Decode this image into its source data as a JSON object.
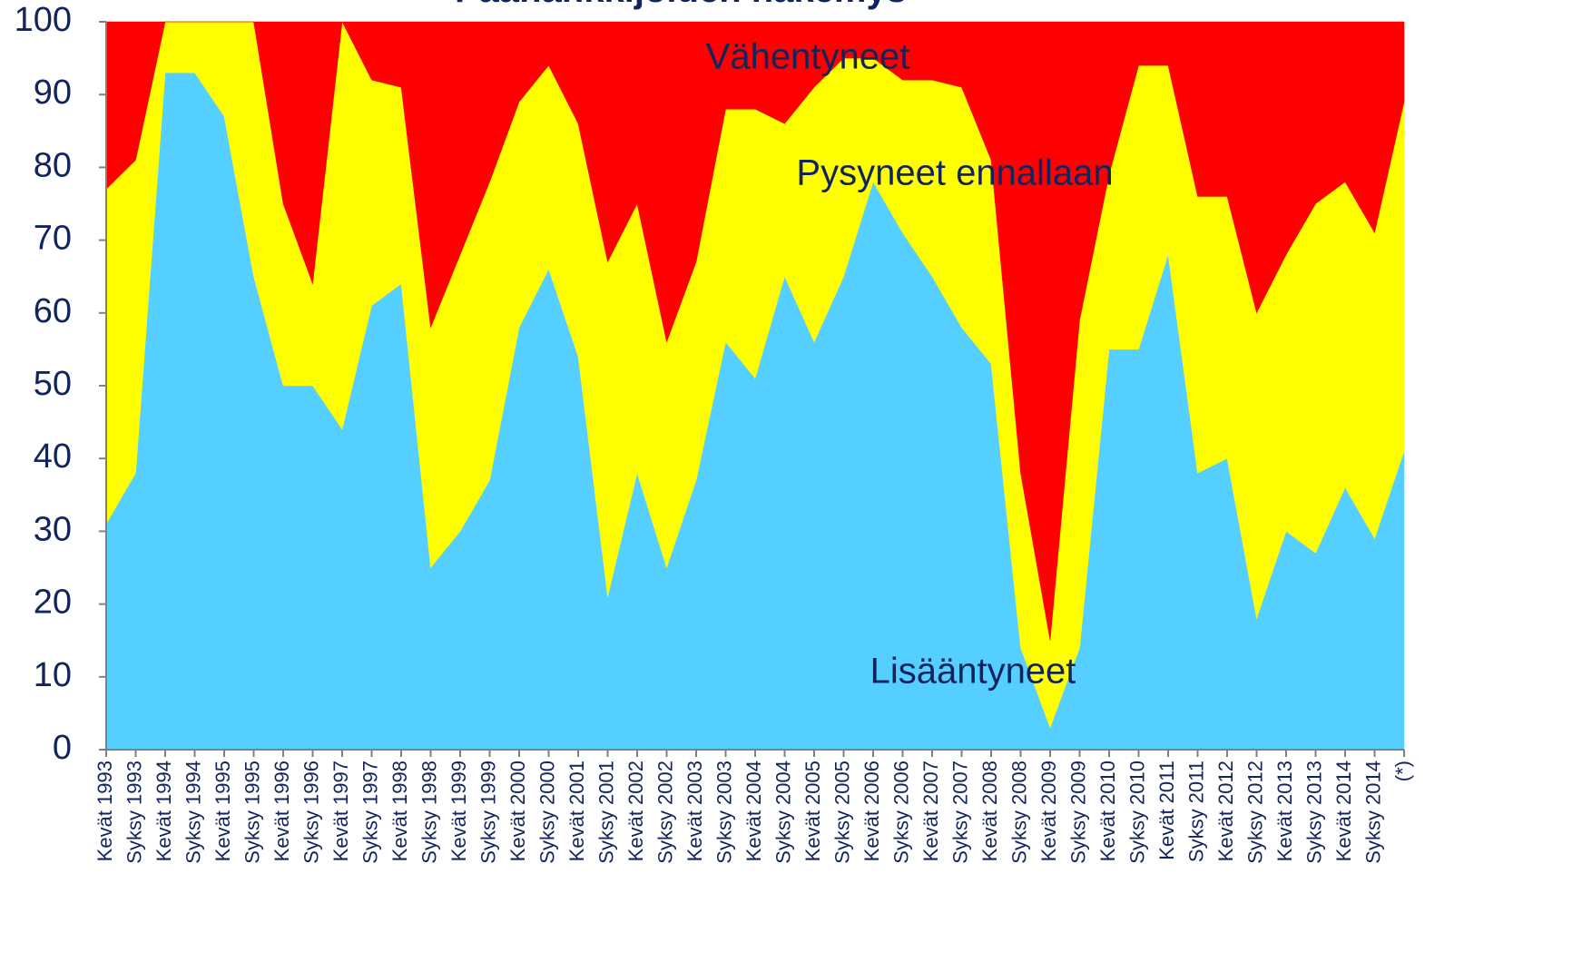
{
  "chart_data": {
    "type": "stacked_area",
    "title": "Päähankkijoiden näkemys",
    "categories": [
      "Kevät 1993",
      "Syksy 1993",
      "Kevät 1994",
      "Syksy 1994",
      "Kevät 1995",
      "Syksy 1995",
      "Kevät 1996",
      "Syksy 1996",
      "Kevät 1997",
      "Syksy 1997",
      "Kevät 1998",
      "Syksy 1998",
      "Kevät 1999",
      "Syksy 1999",
      "Kevät 2000",
      "Syksy 2000",
      "Kevät 2001",
      "Syksy 2001",
      "Kevät 2002",
      "Syksy 2002",
      "Kevät 2003",
      "Syksy 2003",
      "Kevät 2004",
      "Syksy 2004",
      "Kevät 2005",
      "Syksy 2005",
      "Kevät 2006",
      "Syksy 2006",
      "Kevät 2007",
      "Syksy 2007",
      "Kevät 2008",
      "Syksy 2008",
      "Kevät 2009",
      "Syksy 2009",
      "Kevät 2010",
      "Syksy 2010",
      "Kevät 2011",
      "Syksy 2011",
      "Kevät 2012",
      "Syksy 2012",
      "Kevät 2013",
      "Syksy 2013",
      "Kevät 2014",
      "Syksy 2014",
      "(*)"
    ],
    "series": [
      {
        "name": "Lisääntyneet",
        "color": "#55cfff",
        "values": [
          31,
          38,
          93,
          93,
          87,
          65,
          50,
          50,
          44,
          61,
          64,
          25,
          30,
          37,
          58,
          66,
          54,
          21,
          38,
          25,
          37,
          56,
          51,
          65,
          56,
          65,
          78,
          71,
          65,
          58,
          53,
          14,
          3,
          14,
          55,
          55,
          68,
          38,
          40,
          18,
          30,
          27,
          36,
          29,
          41
        ]
      },
      {
        "name": "Pysyneet ennallaan",
        "color": "#ffff00",
        "values": [
          46,
          43,
          7,
          7,
          13,
          35,
          25,
          14,
          56,
          31,
          27,
          33,
          38,
          41,
          31,
          28,
          32,
          46,
          37,
          31,
          30,
          32,
          37,
          21,
          35,
          30,
          17,
          21,
          27,
          33,
          28,
          24,
          12,
          45,
          24,
          39,
          26,
          38,
          36,
          42,
          38,
          48,
          42,
          42,
          48
        ]
      },
      {
        "name": "Vähentyneet",
        "color": "#ff0000",
        "values": [
          23,
          19,
          0,
          0,
          0,
          0,
          25,
          36,
          0,
          8,
          9,
          42,
          32,
          22,
          11,
          6,
          14,
          33,
          25,
          44,
          33,
          12,
          12,
          14,
          9,
          5,
          5,
          8,
          8,
          9,
          19,
          62,
          85,
          41,
          21,
          6,
          6,
          24,
          24,
          40,
          32,
          25,
          22,
          29,
          11
        ]
      }
    ],
    "ylim": [
      0,
      100
    ],
    "yticks": [
      0,
      10,
      20,
      30,
      40,
      50,
      60,
      70,
      80,
      90,
      100
    ]
  }
}
